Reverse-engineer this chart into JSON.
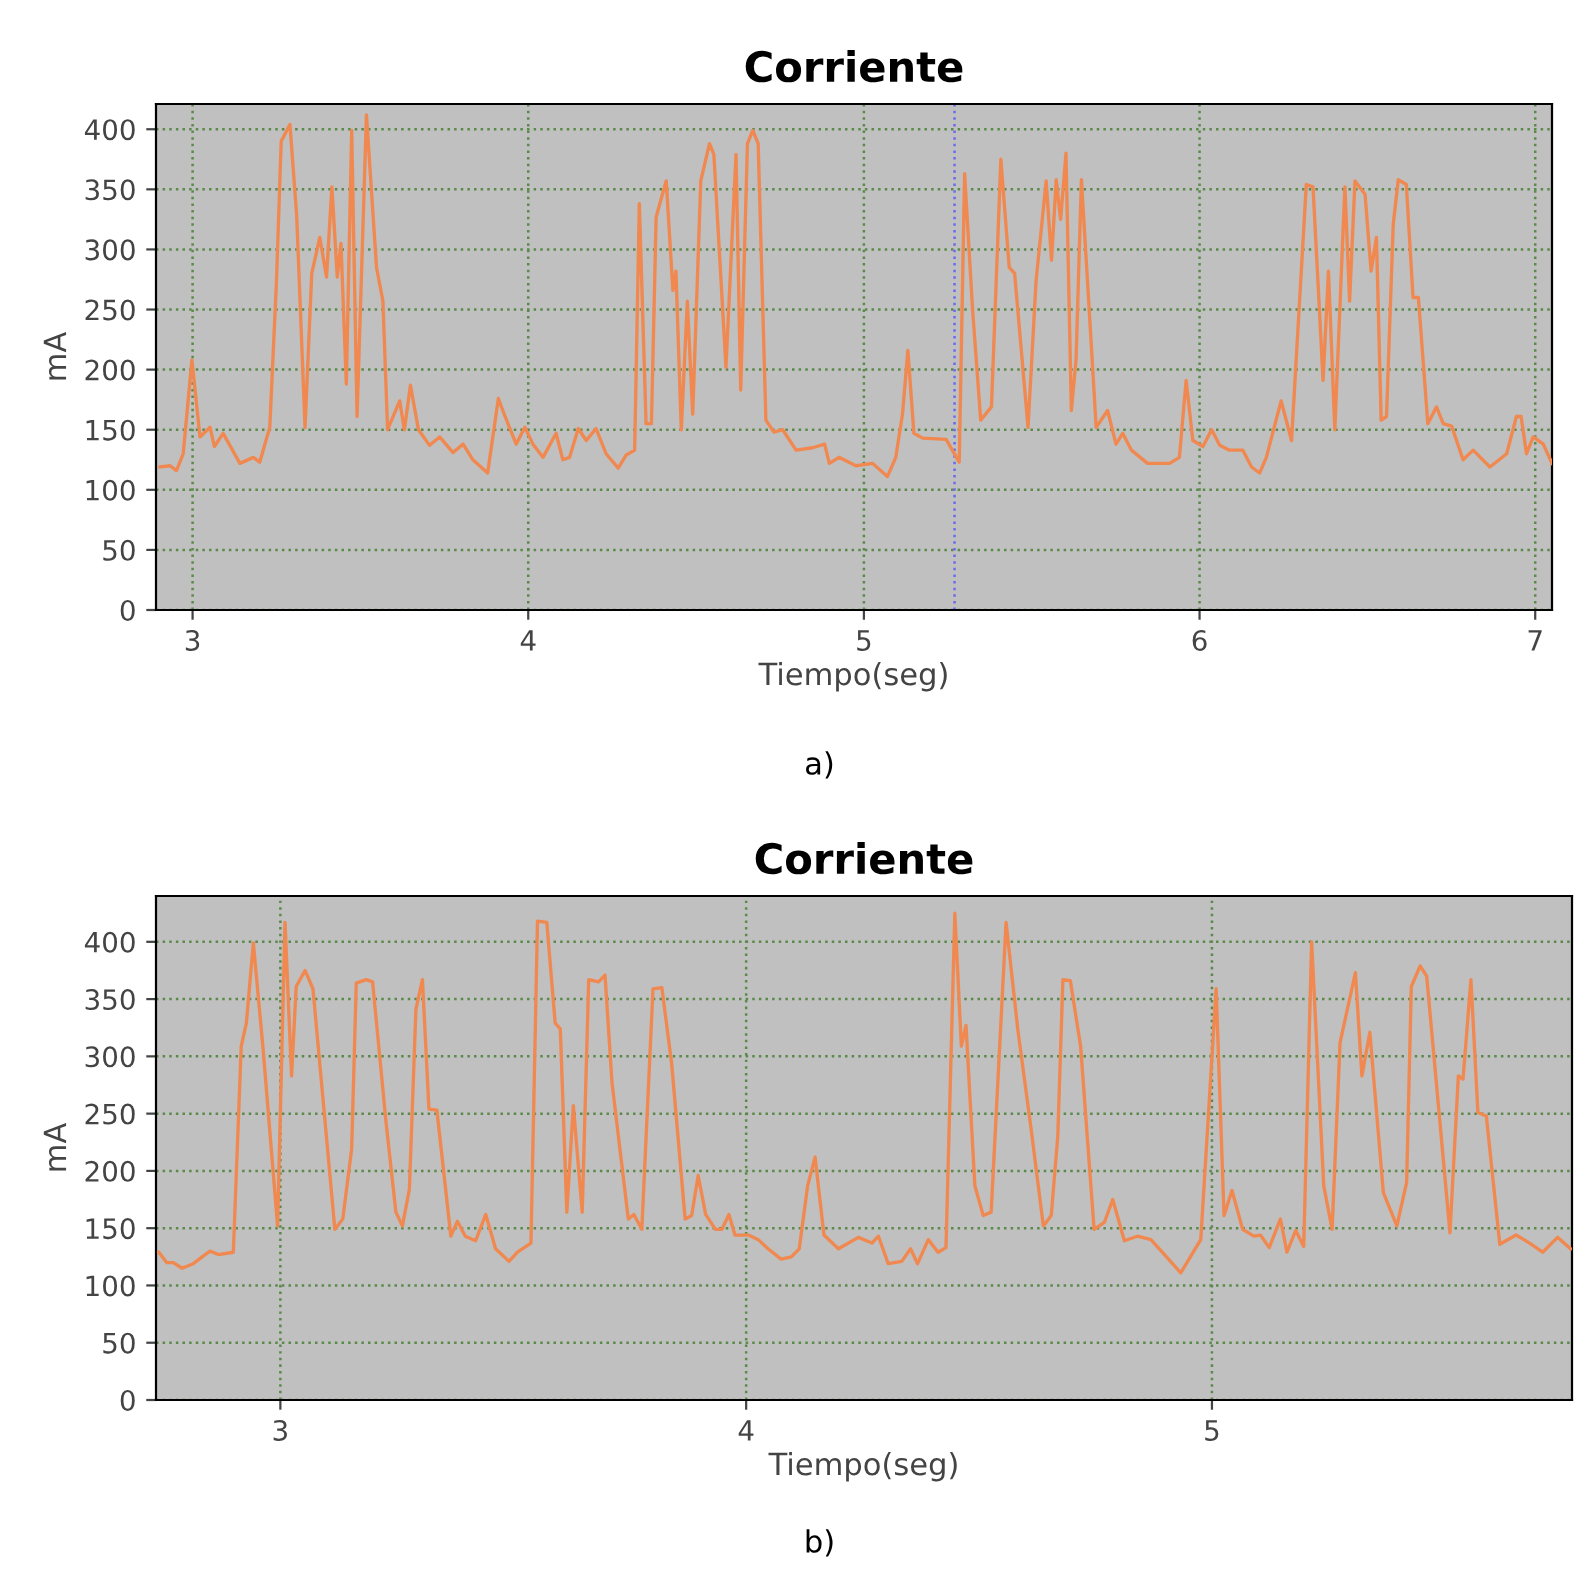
{
  "chart_data": [
    {
      "type": "line",
      "title": "Corriente",
      "xlabel": "Tiempo(seg)",
      "ylabel": "mA",
      "annotations": [
        "a)"
      ],
      "xlim": [
        2.891,
        7.05
      ],
      "xticks": [
        3,
        4,
        5,
        6,
        7
      ],
      "ylim": [
        0,
        421
      ],
      "yticks": [
        0,
        50,
        100,
        150,
        200,
        250,
        300,
        350,
        400
      ],
      "grid": true,
      "line_style": "solid",
      "marker": "none",
      "ref_lines": [
        {
          "axis": "x",
          "value": 5.27,
          "label": null,
          "color": "#6a6af0",
          "line_style": "dotted"
        }
      ],
      "series": [
        {
          "color": "#f08850",
          "x": [
            2.903,
            2.933,
            2.952,
            2.972,
            2.998,
            3.022,
            3.052,
            3.065,
            3.091,
            3.141,
            3.181,
            3.2,
            3.23,
            3.25,
            3.264,
            3.29,
            3.31,
            3.335,
            3.355,
            3.379,
            3.399,
            3.415,
            3.431,
            3.442,
            3.458,
            3.474,
            3.49,
            3.518,
            3.548,
            3.567,
            3.581,
            3.617,
            3.631,
            3.649,
            3.673,
            3.706,
            3.736,
            3.776,
            3.806,
            3.835,
            3.879,
            3.911,
            3.931,
            3.964,
            3.99,
            4.014,
            4.044,
            4.083,
            4.103,
            4.123,
            4.149,
            4.173,
            4.202,
            4.232,
            4.268,
            4.292,
            4.317,
            4.331,
            4.351,
            4.367,
            4.381,
            4.411,
            4.431,
            4.44,
            4.456,
            4.474,
            4.49,
            4.514,
            4.54,
            4.553,
            4.589,
            4.619,
            4.633,
            4.653,
            4.669,
            4.685,
            4.708,
            4.732,
            4.758,
            4.798,
            4.847,
            4.883,
            4.897,
            4.926,
            4.976,
            5.026,
            5.07,
            5.095,
            5.115,
            5.131,
            5.149,
            5.175,
            5.245,
            5.284,
            5.3,
            5.324,
            5.348,
            5.38,
            5.408,
            5.433,
            5.449,
            5.489,
            5.513,
            5.543,
            5.559,
            5.573,
            5.586,
            5.602,
            5.618,
            5.632,
            5.648,
            5.672,
            5.692,
            5.726,
            5.751,
            5.771,
            5.797,
            5.845,
            5.911,
            5.94,
            5.96,
            5.98,
            6.01,
            6.036,
            6.06,
            6.089,
            6.129,
            6.155,
            6.179,
            6.199,
            6.243,
            6.274,
            6.318,
            6.338,
            6.368,
            6.384,
            6.403,
            6.433,
            6.447,
            6.463,
            6.493,
            6.511,
            6.527,
            6.541,
            6.557,
            6.577,
            6.592,
            6.616,
            6.636,
            6.652,
            6.68,
            6.706,
            6.726,
            6.751,
            6.785,
            6.815,
            6.865,
            6.915,
            6.944,
            6.958,
            6.974,
            6.994,
            7.024,
            7.05
          ],
          "values": [
            119,
            120,
            116,
            130,
            208,
            144,
            152,
            136,
            147,
            122,
            127,
            123,
            152,
            274,
            390,
            404,
            329,
            152,
            280,
            310,
            277,
            352,
            277,
            305,
            188,
            399,
            161,
            412,
            285,
            257,
            150,
            174,
            150,
            187,
            150,
            137,
            144,
            131,
            138,
            125,
            114,
            176,
            161,
            138,
            152,
            138,
            127,
            147,
            125,
            127,
            151,
            141,
            151,
            130,
            118,
            129,
            133,
            338,
            155,
            155,
            327,
            357,
            266,
            282,
            150,
            257,
            163,
            357,
            388,
            379,
            202,
            379,
            183,
            388,
            399,
            388,
            158,
            148,
            150,
            133,
            135,
            138,
            122,
            127,
            120,
            122,
            111,
            127,
            163,
            216,
            147,
            143,
            142,
            123,
            363,
            249,
            158,
            169,
            375,
            285,
            280,
            152,
            274,
            357,
            291,
            358,
            325,
            380,
            166,
            208,
            358,
            246,
            152,
            166,
            138,
            147,
            133,
            122,
            122,
            127,
            191,
            141,
            136,
            150,
            137,
            133,
            133,
            119,
            114,
            127,
            174,
            141,
            354,
            352,
            191,
            282,
            150,
            352,
            257,
            357,
            346,
            282,
            310,
            158,
            161,
            321,
            358,
            354,
            260,
            260,
            155,
            169,
            155,
            153,
            125,
            133,
            119,
            130,
            161,
            161,
            130,
            144,
            138,
            122
          ]
        }
      ]
    },
    {
      "type": "line",
      "title": "Corriente",
      "xlabel": "Tiempo(seg)",
      "ylabel": "mA",
      "annotations": [
        "b)"
      ],
      "xlim": [
        2.733,
        5.773
      ],
      "xticks": [
        3,
        4,
        5
      ],
      "ylim": [
        0,
        440
      ],
      "yticks": [
        0,
        50,
        100,
        150,
        200,
        250,
        300,
        350,
        400
      ],
      "grid": true,
      "line_style": "solid",
      "marker": "none",
      "series": [
        {
          "color": "#f08850",
          "x": [
            2.739,
            2.756,
            2.77,
            2.789,
            2.813,
            2.832,
            2.849,
            2.867,
            2.899,
            2.916,
            2.927,
            2.942,
            2.963,
            2.994,
            3.01,
            3.024,
            3.034,
            3.053,
            3.07,
            3.091,
            3.117,
            3.134,
            3.153,
            3.163,
            3.184,
            3.198,
            3.227,
            3.248,
            3.262,
            3.277,
            3.291,
            3.305,
            3.319,
            3.336,
            3.366,
            3.38,
            3.397,
            3.419,
            3.441,
            3.462,
            3.491,
            3.509,
            3.538,
            3.552,
            3.572,
            3.59,
            3.601,
            3.615,
            3.629,
            3.648,
            3.662,
            3.683,
            3.697,
            3.712,
            3.747,
            3.759,
            3.776,
            3.8,
            3.819,
            3.84,
            3.869,
            3.883,
            3.897,
            3.913,
            3.934,
            3.948,
            3.963,
            3.976,
            4.005,
            4.026,
            4.047,
            4.075,
            4.097,
            4.114,
            4.132,
            4.148,
            4.167,
            4.198,
            4.241,
            4.27,
            4.284,
            4.305,
            4.334,
            4.353,
            4.368,
            4.391,
            4.412,
            4.429,
            4.448,
            4.462,
            4.472,
            4.491,
            4.509,
            4.526,
            4.558,
            4.583,
            4.612,
            4.638,
            4.655,
            4.669,
            4.68,
            4.696,
            4.718,
            4.747,
            4.769,
            4.787,
            4.812,
            4.84,
            4.869,
            4.9,
            4.933,
            4.976,
            5.009,
            5.026,
            5.043,
            5.066,
            5.09,
            5.104,
            5.123,
            5.147,
            5.161,
            5.18,
            5.197,
            5.214,
            5.24,
            5.258,
            5.275,
            5.308,
            5.322,
            5.339,
            5.368,
            5.397,
            5.418,
            5.428,
            5.447,
            5.461,
            5.511,
            5.529,
            5.539,
            5.556,
            5.571,
            5.589,
            5.618,
            5.653,
            5.682,
            5.71,
            5.742,
            5.77
          ],
          "values": [
            129,
            120,
            120,
            115,
            119,
            125,
            130,
            127,
            129,
            309,
            329,
            399,
            306,
            152,
            417,
            283,
            361,
            375,
            359,
            265,
            149,
            158,
            219,
            364,
            367,
            365,
            242,
            164,
            152,
            184,
            341,
            367,
            254,
            253,
            143,
            156,
            143,
            139,
            162,
            132,
            121,
            129,
            137,
            418,
            417,
            329,
            324,
            164,
            257,
            164,
            367,
            365,
            371,
            277,
            158,
            162,
            149,
            359,
            360,
            294,
            158,
            161,
            196,
            162,
            149,
            149,
            162,
            144,
            144,
            140,
            132,
            123,
            125,
            132,
            187,
            212,
            144,
            132,
            142,
            137,
            143,
            119,
            121,
            132,
            119,
            140,
            129,
            133,
            425,
            309,
            327,
            187,
            161,
            164,
            417,
            324,
            236,
            152,
            161,
            230,
            367,
            366,
            309,
            149,
            155,
            175,
            139,
            143,
            140,
            126,
            111,
            140,
            359,
            161,
            183,
            149,
            143,
            144,
            133,
            158,
            129,
            148,
            134,
            400,
            187,
            149,
            312,
            373,
            283,
            321,
            181,
            152,
            190,
            361,
            379,
            370,
            146,
            283,
            280,
            367,
            251,
            248,
            136,
            144,
            137,
            129,
            142,
            132
          ]
        }
      ]
    }
  ]
}
